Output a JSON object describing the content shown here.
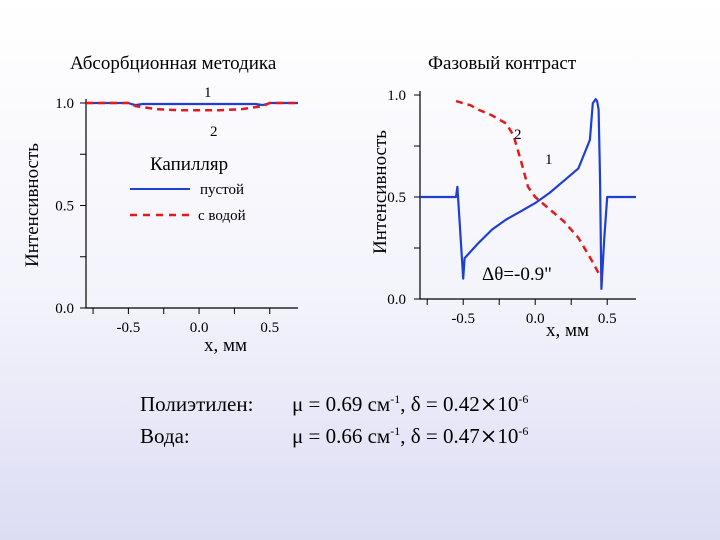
{
  "chart_data": [
    {
      "type": "line",
      "title": "Абсорбционная методика",
      "xlabel": "x, мм",
      "ylabel": "Интенсивность",
      "xlim": [
        -0.8,
        0.7
      ],
      "ylim": [
        0.0,
        1.0
      ],
      "xticks": [
        "-0.5",
        "0.0",
        "0.5"
      ],
      "yticks": [
        "0.0",
        "0.5",
        "1.0"
      ],
      "legend": {
        "title": "Капилляр",
        "position": "center",
        "entries": [
          "пустой",
          "с водой"
        ]
      },
      "curve_labels": [
        "1",
        "2"
      ],
      "series": [
        {
          "name": "пустой",
          "color": "#1f3fd1",
          "dash": "solid",
          "x": [
            -0.8,
            -0.5,
            -0.48,
            -0.45,
            -0.4,
            0.0,
            0.4,
            0.45,
            0.48,
            0.5,
            0.7
          ],
          "y": [
            1.0,
            1.0,
            0.995,
            0.99,
            0.995,
            0.995,
            0.995,
            0.99,
            0.995,
            1.0,
            1.0
          ]
        },
        {
          "name": "с водой",
          "color": "#e01b1b",
          "dash": "dashed",
          "x": [
            -0.8,
            -0.5,
            -0.45,
            -0.3,
            -0.15,
            0.0,
            0.15,
            0.3,
            0.45,
            0.5,
            0.7
          ],
          "y": [
            1.0,
            1.0,
            0.985,
            0.97,
            0.965,
            0.965,
            0.965,
            0.97,
            0.985,
            1.0,
            1.0
          ]
        }
      ]
    },
    {
      "type": "line",
      "title": "Фазовый контраст",
      "xlabel": "x, мм",
      "ylabel": "Интенсивность",
      "xlim": [
        -0.8,
        0.7
      ],
      "ylim": [
        0.0,
        1.0
      ],
      "xticks": [
        "-0.5",
        "0.0",
        "0.5"
      ],
      "yticks": [
        "0.0",
        "0.5",
        "1.0"
      ],
      "annotation": "Δθ=-0.9\"",
      "curve_labels": [
        "1",
        "2"
      ],
      "series": [
        {
          "name": "1",
          "color": "#1f3fd1",
          "dash": "solid",
          "x": [
            -0.8,
            -0.6,
            -0.58,
            -0.55,
            -0.54,
            -0.5,
            -0.49,
            -0.4,
            -0.3,
            -0.2,
            -0.1,
            0.0,
            0.1,
            0.2,
            0.3,
            0.38,
            0.4,
            0.42,
            0.43,
            0.44,
            0.45,
            0.46,
            0.48,
            0.5,
            0.7
          ],
          "y": [
            0.5,
            0.5,
            0.5,
            0.5,
            0.55,
            0.1,
            0.2,
            0.27,
            0.34,
            0.39,
            0.43,
            0.47,
            0.52,
            0.58,
            0.64,
            0.78,
            0.96,
            0.98,
            0.97,
            0.93,
            0.6,
            0.05,
            0.3,
            0.5,
            0.5
          ]
        },
        {
          "name": "2",
          "color": "#e01b1b",
          "dash": "dashed",
          "x": [
            -0.55,
            -0.5,
            -0.45,
            -0.4,
            -0.3,
            -0.2,
            -0.15,
            -0.1,
            -0.05,
            0.0,
            0.1,
            0.2,
            0.3,
            0.35,
            0.4,
            0.43,
            0.46
          ],
          "y": [
            0.97,
            0.96,
            0.95,
            0.93,
            0.9,
            0.86,
            0.8,
            0.68,
            0.55,
            0.5,
            0.44,
            0.38,
            0.3,
            0.24,
            0.18,
            0.14,
            0.1
          ]
        }
      ]
    }
  ],
  "footer": {
    "line1": {
      "label": "Полиэтилен:",
      "mu": "μ = 0.69 см",
      "mu_exp": "-1",
      "delta": ",  δ = 0.42",
      "times": "⨯",
      "pow": "10",
      "pow_exp": "-6"
    },
    "line2": {
      "label": "Вода:",
      "mu": "μ = 0.66 см",
      "mu_exp": "-1",
      "delta": ",  δ = 0.47",
      "times": "⨯",
      "pow": "10",
      "pow_exp": "-6"
    }
  }
}
